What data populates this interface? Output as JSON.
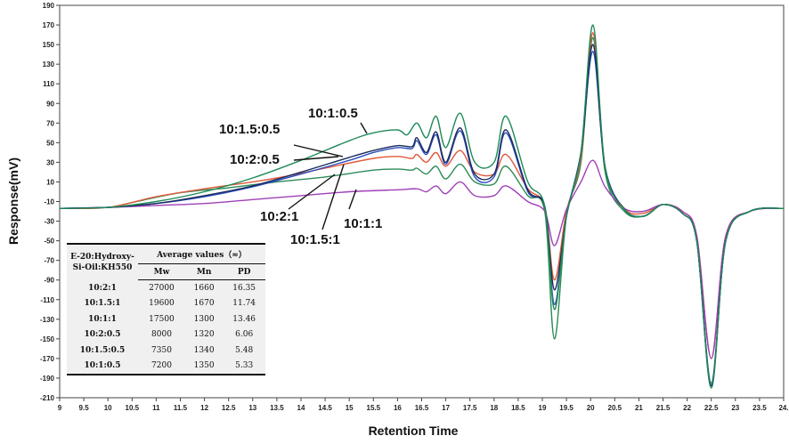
{
  "chart_data": {
    "type": "line",
    "title": "",
    "xlabel": "Retention Time",
    "ylabel": "Response(mV)",
    "xlim": [
      9,
      24
    ],
    "ylim": [
      -210,
      190
    ],
    "x_ticks": [
      9,
      9.5,
      10,
      10.5,
      11,
      11.5,
      12,
      12.5,
      13,
      13.5,
      14,
      14.5,
      15,
      15.5,
      16,
      16.5,
      17,
      17.5,
      18,
      18.5,
      19,
      19.5,
      20,
      20.5,
      21,
      21.5,
      22,
      22.5,
      23,
      23.5,
      24
    ],
    "x_tick_labels": [
      "9",
      "9.5",
      "10",
      "10.5",
      "11",
      "11.5",
      "12",
      "12.5",
      "13",
      "13.5",
      "14",
      "14.5",
      "15",
      "15.5",
      "16",
      "16.5",
      "17",
      "17.5",
      "18",
      "18.5",
      "19",
      "19.5",
      "20",
      "20.5",
      "21",
      "21.5",
      "22",
      "22.5",
      "23",
      "23.5",
      "24."
    ],
    "y_ticks": [
      -210,
      -190,
      -170,
      -150,
      -130,
      -110,
      -90,
      -70,
      -50,
      -30,
      -10,
      10,
      30,
      50,
      70,
      90,
      110,
      130,
      150,
      170,
      190
    ],
    "grid": false,
    "series": [
      {
        "name": "10:2:1",
        "color": "#2e8b57",
        "points": [
          [
            9,
            -17
          ],
          [
            10,
            -16
          ],
          [
            10.5,
            -11
          ],
          [
            11.5,
            -1
          ],
          [
            12.5,
            4
          ],
          [
            13.5,
            10
          ],
          [
            14.5,
            15
          ],
          [
            15.5,
            22
          ],
          [
            16,
            23
          ],
          [
            16.3,
            22
          ],
          [
            16.4,
            24
          ],
          [
            16.6,
            18
          ],
          [
            16.8,
            26
          ],
          [
            17,
            13
          ],
          [
            17.3,
            28
          ],
          [
            17.6,
            10
          ],
          [
            18,
            8
          ],
          [
            18.25,
            26
          ],
          [
            18.7,
            -4
          ],
          [
            19.05,
            -20
          ],
          [
            19.25,
            -150
          ],
          [
            19.5,
            -25
          ],
          [
            19.8,
            30
          ],
          [
            20.05,
            157
          ],
          [
            20.3,
            20
          ],
          [
            20.7,
            -20
          ],
          [
            21.1,
            -25
          ],
          [
            21.5,
            -13
          ],
          [
            21.9,
            -22
          ],
          [
            22.2,
            -50
          ],
          [
            22.5,
            -195
          ],
          [
            22.8,
            -50
          ],
          [
            23.3,
            -20
          ],
          [
            24,
            -17
          ]
        ]
      },
      {
        "name": "10:1.5:1",
        "color": "#e05a3a",
        "points": [
          [
            9,
            -17
          ],
          [
            10,
            -16
          ],
          [
            11,
            -5
          ],
          [
            12,
            3
          ],
          [
            13,
            10
          ],
          [
            13.5,
            14
          ],
          [
            14.5,
            24
          ],
          [
            15.5,
            34
          ],
          [
            16,
            36
          ],
          [
            16.3,
            34
          ],
          [
            16.4,
            38
          ],
          [
            16.6,
            30
          ],
          [
            16.8,
            40
          ],
          [
            17,
            26
          ],
          [
            17.3,
            42
          ],
          [
            17.6,
            20
          ],
          [
            18,
            18
          ],
          [
            18.25,
            38
          ],
          [
            18.7,
            3
          ],
          [
            19.05,
            -15
          ],
          [
            19.25,
            -90
          ],
          [
            19.5,
            -20
          ],
          [
            19.8,
            35
          ],
          [
            20.05,
            162
          ],
          [
            20.3,
            25
          ],
          [
            20.7,
            -17
          ],
          [
            21.1,
            -22
          ],
          [
            21.5,
            -13
          ],
          [
            21.9,
            -20
          ],
          [
            22.2,
            -45
          ],
          [
            22.5,
            -170
          ],
          [
            22.8,
            -45
          ],
          [
            23.3,
            -20
          ],
          [
            24,
            -17
          ]
        ]
      },
      {
        "name": "10:1:1",
        "color": "#a040b8",
        "points": [
          [
            9,
            -17
          ],
          [
            10,
            -16
          ],
          [
            11,
            -14
          ],
          [
            12,
            -12
          ],
          [
            13,
            -8
          ],
          [
            14,
            -4
          ],
          [
            15,
            0
          ],
          [
            16,
            2
          ],
          [
            16.4,
            3
          ],
          [
            16.6,
            0
          ],
          [
            16.8,
            6
          ],
          [
            17,
            -2
          ],
          [
            17.3,
            10
          ],
          [
            17.6,
            -4
          ],
          [
            18,
            -4
          ],
          [
            18.25,
            6
          ],
          [
            18.7,
            -10
          ],
          [
            19.05,
            -20
          ],
          [
            19.25,
            -55
          ],
          [
            19.5,
            -18
          ],
          [
            19.8,
            10
          ],
          [
            20.05,
            32
          ],
          [
            20.3,
            5
          ],
          [
            20.7,
            -17
          ],
          [
            21.1,
            -20
          ],
          [
            21.5,
            -13
          ],
          [
            21.9,
            -20
          ],
          [
            22.2,
            -45
          ],
          [
            22.5,
            -170
          ],
          [
            22.8,
            -45
          ],
          [
            23.3,
            -20
          ],
          [
            24,
            -17
          ]
        ]
      },
      {
        "name": "10:2:0.5",
        "color": "#2a4cc0",
        "points": [
          [
            9,
            -17
          ],
          [
            10,
            -16
          ],
          [
            11,
            -12
          ],
          [
            12,
            -5
          ],
          [
            13,
            5
          ],
          [
            14,
            18
          ],
          [
            15,
            32
          ],
          [
            15.5,
            40
          ],
          [
            16,
            45
          ],
          [
            16.3,
            44
          ],
          [
            16.4,
            52
          ],
          [
            16.6,
            38
          ],
          [
            16.8,
            58
          ],
          [
            17,
            28
          ],
          [
            17.3,
            62
          ],
          [
            17.6,
            15
          ],
          [
            18,
            15
          ],
          [
            18.25,
            60
          ],
          [
            18.7,
            0
          ],
          [
            19.05,
            -15
          ],
          [
            19.25,
            -115
          ],
          [
            19.5,
            -25
          ],
          [
            19.8,
            40
          ],
          [
            20.05,
            143
          ],
          [
            20.3,
            25
          ],
          [
            20.7,
            -18
          ],
          [
            21.1,
            -25
          ],
          [
            21.5,
            -13
          ],
          [
            21.9,
            -22
          ],
          [
            22.2,
            -50
          ],
          [
            22.5,
            -197
          ],
          [
            22.8,
            -50
          ],
          [
            23.3,
            -20
          ],
          [
            24,
            -17
          ]
        ]
      },
      {
        "name": "10:1.5:0.5",
        "color": "#1a2a5a",
        "points": [
          [
            9,
            -17
          ],
          [
            10,
            -16
          ],
          [
            11,
            -12
          ],
          [
            12,
            -4
          ],
          [
            13,
            6
          ],
          [
            14,
            20
          ],
          [
            15,
            35
          ],
          [
            15.5,
            42
          ],
          [
            16,
            47
          ],
          [
            16.3,
            46
          ],
          [
            16.4,
            55
          ],
          [
            16.6,
            40
          ],
          [
            16.8,
            61
          ],
          [
            17,
            30
          ],
          [
            17.3,
            65
          ],
          [
            17.6,
            18
          ],
          [
            18,
            18
          ],
          [
            18.25,
            63
          ],
          [
            18.7,
            2
          ],
          [
            19.05,
            -15
          ],
          [
            19.25,
            -100
          ],
          [
            19.5,
            -25
          ],
          [
            19.8,
            40
          ],
          [
            20.05,
            150
          ],
          [
            20.3,
            25
          ],
          [
            20.7,
            -18
          ],
          [
            21.1,
            -25
          ],
          [
            21.5,
            -13
          ],
          [
            21.9,
            -22
          ],
          [
            22.2,
            -50
          ],
          [
            22.5,
            -198
          ],
          [
            22.8,
            -50
          ],
          [
            23.3,
            -20
          ],
          [
            24,
            -17
          ]
        ]
      },
      {
        "name": "10:1:0.5",
        "color": "#1f8a58",
        "points": [
          [
            9,
            -17
          ],
          [
            10,
            -16
          ],
          [
            11,
            -10
          ],
          [
            12,
            0
          ],
          [
            13,
            14
          ],
          [
            14,
            32
          ],
          [
            15,
            52
          ],
          [
            15.5,
            60
          ],
          [
            16,
            63
          ],
          [
            16.2,
            58
          ],
          [
            16.4,
            70
          ],
          [
            16.6,
            55
          ],
          [
            16.8,
            77
          ],
          [
            17,
            45
          ],
          [
            17.3,
            80
          ],
          [
            17.6,
            30
          ],
          [
            18,
            30
          ],
          [
            18.25,
            77
          ],
          [
            18.7,
            10
          ],
          [
            19.05,
            -15
          ],
          [
            19.25,
            -120
          ],
          [
            19.5,
            -25
          ],
          [
            19.8,
            40
          ],
          [
            20.05,
            170
          ],
          [
            20.3,
            25
          ],
          [
            20.7,
            -18
          ],
          [
            21.1,
            -25
          ],
          [
            21.5,
            -13
          ],
          [
            21.9,
            -22
          ],
          [
            22.2,
            -50
          ],
          [
            22.5,
            -200
          ],
          [
            22.8,
            -50
          ],
          [
            23.3,
            -20
          ],
          [
            24,
            -17
          ]
        ]
      }
    ],
    "annotations": [
      {
        "label": "10:1:0.5"
      },
      {
        "label": "10:1.5:0.5"
      },
      {
        "label": "10:2:0.5"
      },
      {
        "label": "10:2:1"
      },
      {
        "label": "10:1:1"
      },
      {
        "label": "10:1.5:1"
      }
    ],
    "table": {
      "header_left": "E-20:Hydroxy-Si-Oil:KH550",
      "header_group": "Average values（≈）",
      "subheaders": [
        "Mw",
        "Mn",
        "PD"
      ],
      "rows": [
        [
          "10:2:1",
          "27000",
          "1660",
          "16.35"
        ],
        [
          "10:1.5:1",
          "19600",
          "1670",
          "11.74"
        ],
        [
          "10:1:1",
          "17500",
          "1300",
          "13.46"
        ],
        [
          "10:2:0.5",
          "8000",
          "1320",
          "6.06"
        ],
        [
          "10:1.5:0.5",
          "7350",
          "1340",
          "5.48"
        ],
        [
          "10:1:0.5",
          "7200",
          "1350",
          "5.33"
        ]
      ]
    }
  }
}
